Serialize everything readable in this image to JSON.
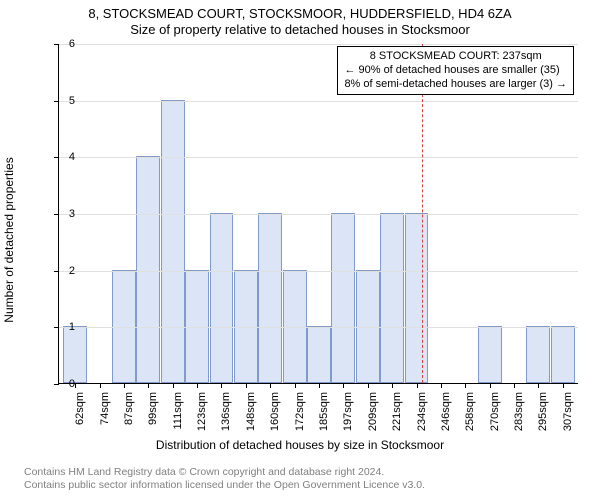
{
  "title_line1": "8, STOCKSMEAD COURT, STOCKSMOOR, HUDDERSFIELD, HD4 6ZA",
  "title_line2": "Size of property relative to detached houses in Stocksmoor",
  "ylabel": "Number of detached properties",
  "xlabel": "Distribution of detached houses by size in Stocksmoor",
  "credits_line1": "Contains HM Land Registry data © Crown copyright and database right 2024.",
  "credits_line2": "Contains public sector information licensed under the Open Government Licence v3.0.",
  "annotation": {
    "line1": "8 STOCKSMEAD COURT: 237sqm",
    "line2": "← 90% of detached houses are smaller (35)",
    "line3": "8% of semi-detached houses are larger (3) →"
  },
  "chart": {
    "type": "histogram",
    "ylim": [
      0,
      6
    ],
    "ytick_step": 1,
    "background_color": "#ffffff",
    "grid_color": "#e0e0e0",
    "bar_fill": "#dbe5f6",
    "bar_border": "#7f9acb",
    "marker_color": "#d84444",
    "marker_value": 237,
    "x_start": 56,
    "x_step": 12.28,
    "categories": [
      "62sqm",
      "74sqm",
      "87sqm",
      "99sqm",
      "111sqm",
      "123sqm",
      "136sqm",
      "148sqm",
      "160sqm",
      "172sqm",
      "185sqm",
      "197sqm",
      "209sqm",
      "221sqm",
      "234sqm",
      "246sqm",
      "258sqm",
      "270sqm",
      "283sqm",
      "295sqm",
      "307sqm"
    ],
    "values": [
      1,
      0,
      2,
      4,
      5,
      2,
      3,
      2,
      3,
      2,
      1,
      3,
      2,
      3,
      3,
      0,
      0,
      1,
      0,
      1,
      1
    ]
  }
}
